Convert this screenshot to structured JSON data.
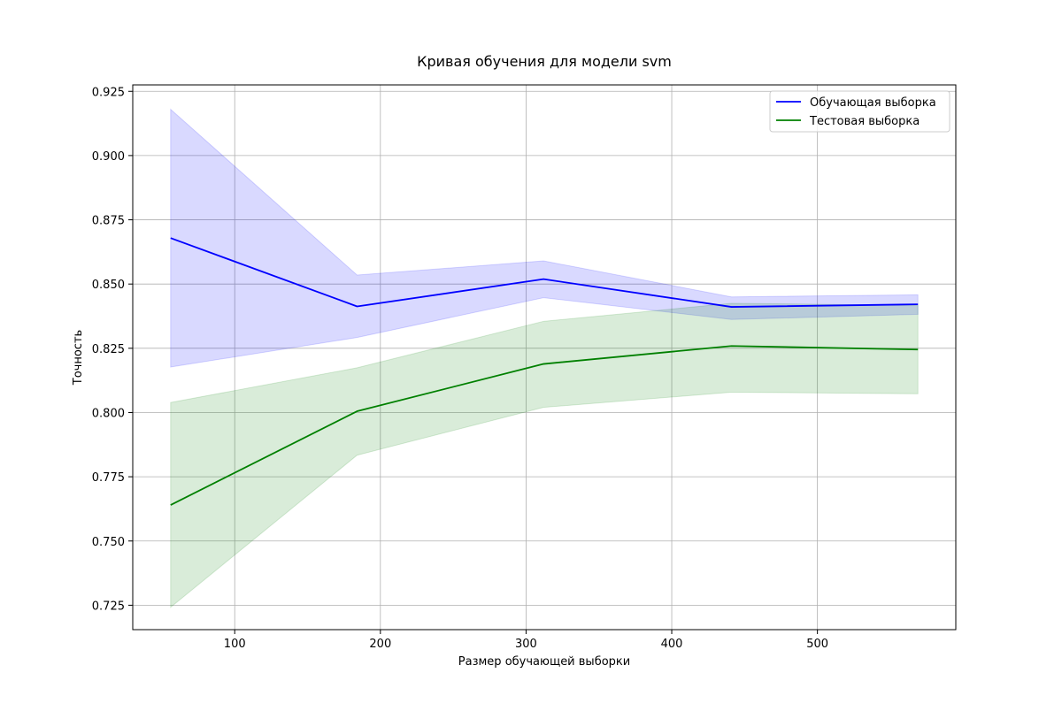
{
  "chart_data": {
    "type": "line",
    "title": "Кривая обучения для модели svm",
    "xlabel": "Размер обучающей выборки",
    "ylabel": "Точность",
    "xlim": [
      30,
      595
    ],
    "ylim": [
      0.7155,
      0.9275
    ],
    "xticks": [
      100,
      200,
      300,
      400,
      500
    ],
    "yticks": [
      0.725,
      0.75,
      0.775,
      0.8,
      0.825,
      0.85,
      0.875,
      0.9,
      0.925
    ],
    "grid": true,
    "legend_position": "upper right",
    "x": [
      56,
      184,
      312,
      441,
      569
    ],
    "series": [
      {
        "name": "Обучающая выборка",
        "color": "#0000ff",
        "values": [
          0.8679,
          0.8413,
          0.8519,
          0.8411,
          0.8421
        ],
        "band_lower": [
          0.8177,
          0.8292,
          0.8447,
          0.8362,
          0.8382
        ],
        "band_upper": [
          0.918,
          0.8535,
          0.859,
          0.845,
          0.8458
        ]
      },
      {
        "name": "Тестовая выборка",
        "color": "#008000",
        "values": [
          0.764,
          0.8005,
          0.8189,
          0.8259,
          0.8245
        ],
        "band_lower": [
          0.7242,
          0.7834,
          0.802,
          0.8079,
          0.8073
        ],
        "band_upper": [
          0.8039,
          0.8174,
          0.8355,
          0.8425,
          0.8417
        ]
      }
    ]
  }
}
